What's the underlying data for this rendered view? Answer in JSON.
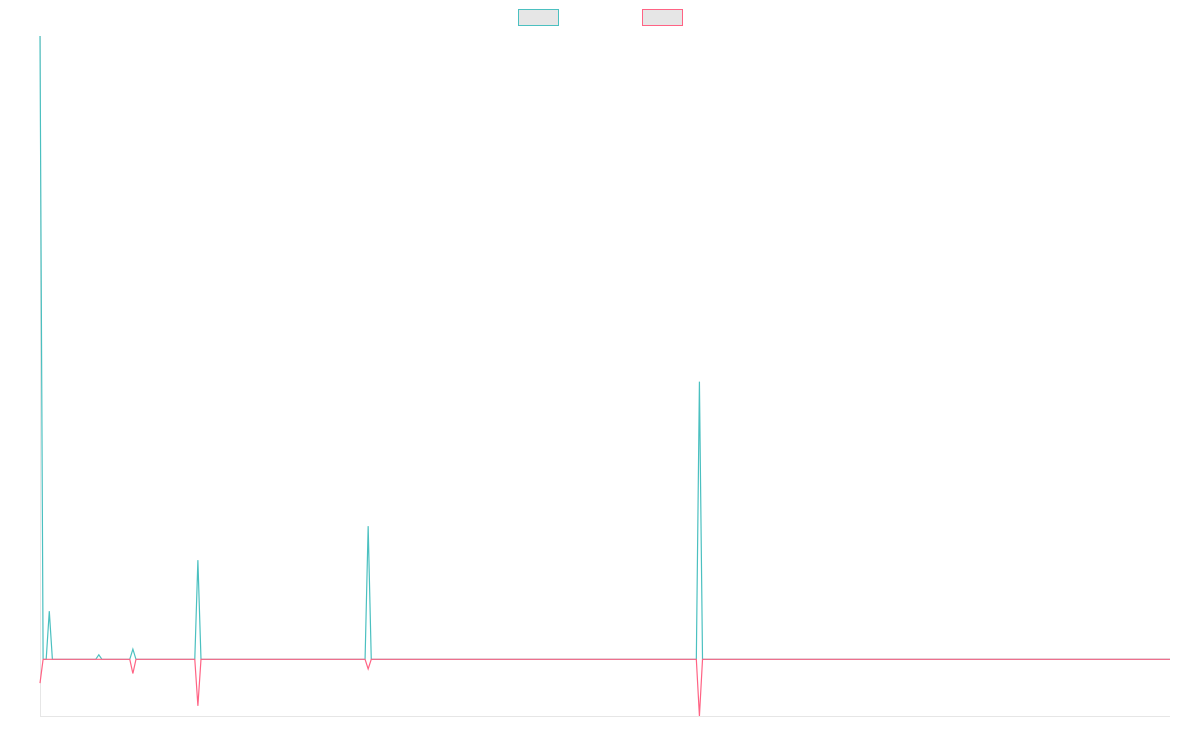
{
  "chart_data": {
    "type": "line",
    "title": "",
    "xlabel": "",
    "ylabel": "",
    "grid": false,
    "legend": {
      "position": "top-center",
      "entries": [
        "",
        ""
      ]
    },
    "x_range": [
      0,
      365
    ],
    "y_range": [
      -100,
      1100
    ],
    "series": [
      {
        "color": "#4bc0c0",
        "points": [
          [
            0,
            1100
          ],
          [
            1,
            0
          ],
          [
            2,
            0
          ],
          [
            3,
            85
          ],
          [
            4,
            0
          ],
          [
            5,
            0
          ],
          [
            18,
            0
          ],
          [
            19,
            8
          ],
          [
            20,
            0
          ],
          [
            21,
            0
          ],
          [
            29,
            0
          ],
          [
            30,
            18
          ],
          [
            31,
            0
          ],
          [
            32,
            0
          ],
          [
            50,
            0
          ],
          [
            51,
            175
          ],
          [
            52,
            0
          ],
          [
            53,
            0
          ],
          [
            105,
            0
          ],
          [
            106,
            235
          ],
          [
            107,
            0
          ],
          [
            108,
            0
          ],
          [
            212,
            0
          ],
          [
            213,
            490
          ],
          [
            214,
            0
          ],
          [
            215,
            0
          ],
          [
            365,
            0
          ]
        ]
      },
      {
        "color": "#ff6384",
        "points": [
          [
            0,
            -42
          ],
          [
            1,
            0
          ],
          [
            2,
            0
          ],
          [
            29,
            0
          ],
          [
            30,
            -25
          ],
          [
            31,
            0
          ],
          [
            32,
            0
          ],
          [
            50,
            0
          ],
          [
            51,
            -82
          ],
          [
            52,
            0
          ],
          [
            53,
            0
          ],
          [
            105,
            0
          ],
          [
            106,
            -17
          ],
          [
            107,
            0
          ],
          [
            108,
            0
          ],
          [
            212,
            0
          ],
          [
            213,
            -100
          ],
          [
            214,
            0
          ],
          [
            215,
            0
          ],
          [
            365,
            0
          ]
        ]
      }
    ]
  }
}
